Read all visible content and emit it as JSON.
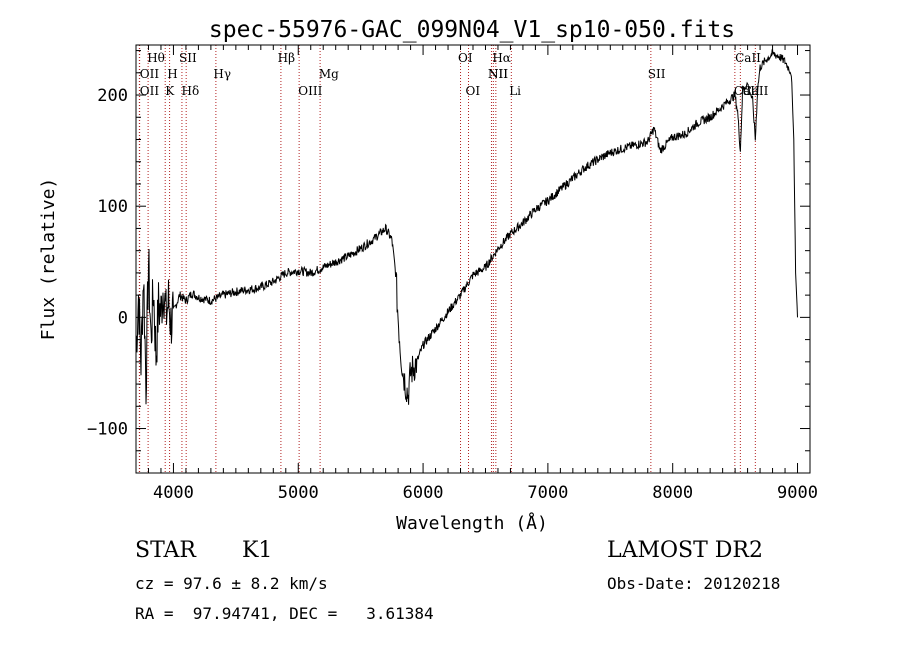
{
  "chart_data": {
    "type": "line",
    "title": "spec-55976-GAC_099N04_V1_sp10-050.fits",
    "xlabel": "Wavelength (Å)",
    "ylabel": "Flux (relative)",
    "xlim": [
      3700,
      9100
    ],
    "ylim": [
      -140,
      245
    ],
    "x_ticks": [
      4000,
      5000,
      6000,
      7000,
      8000,
      9000
    ],
    "x_tick_labels": [
      "4000",
      "5000",
      "6000",
      "7000",
      "8000",
      "9000"
    ],
    "y_ticks": [
      -100,
      0,
      100,
      200
    ],
    "y_tick_labels": [
      "−100",
      "0",
      "100",
      "200"
    ],
    "grid": false,
    "series": [
      {
        "x": [
          3700,
          3720,
          3740,
          3760,
          3780,
          3800,
          3820,
          3840,
          3860,
          3880,
          3900,
          3920,
          3940,
          3960,
          3980,
          4000,
          4050,
          4100,
          4150,
          4200,
          4300,
          4400,
          4500,
          4600,
          4700,
          4800,
          4900,
          5000,
          5100,
          5200,
          5300,
          5400,
          5500,
          5600,
          5650,
          5700,
          5750,
          5780,
          5800,
          5820,
          5840,
          5860,
          5880,
          5900,
          5950,
          6000,
          6100,
          6200,
          6300,
          6400,
          6500,
          6600,
          6700,
          6800,
          6900,
          7000,
          7100,
          7200,
          7300,
          7400,
          7500,
          7600,
          7700,
          7800,
          7850,
          7900,
          8000,
          8100,
          8200,
          8300,
          8400,
          8450,
          8498,
          8520,
          8542,
          8560,
          8600,
          8640,
          8662,
          8680,
          8700,
          8750,
          8800,
          8850,
          8900,
          8950,
          8970,
          8985,
          9000
        ],
        "y": [
          -30,
          20,
          -40,
          40,
          -60,
          50,
          -20,
          25,
          -35,
          10,
          5,
          30,
          0,
          15,
          -5,
          5,
          20,
          15,
          22,
          18,
          15,
          20,
          23,
          25,
          27,
          32,
          40,
          42,
          40,
          45,
          50,
          55,
          62,
          70,
          75,
          80,
          70,
          40,
          0,
          -30,
          -50,
          -60,
          -70,
          -50,
          -40,
          -25,
          -10,
          5,
          20,
          38,
          45,
          62,
          75,
          85,
          97,
          105,
          115,
          125,
          135,
          142,
          148,
          152,
          155,
          158,
          170,
          150,
          162,
          165,
          175,
          180,
          190,
          195,
          200,
          185,
          150,
          205,
          210,
          195,
          160,
          205,
          225,
          232,
          237,
          235,
          230,
          220,
          160,
          40,
          0
        ]
      }
    ],
    "line_markers": [
      {
        "wavelength": 3727,
        "label": "OII",
        "row": 2,
        "label_x": 3730
      },
      {
        "wavelength": 3729,
        "label": "OII",
        "row": 3,
        "label_x": 3730
      },
      {
        "wavelength": 3797,
        "label": "Hθ",
        "row": 1,
        "label_x": 3790
      },
      {
        "wavelength": 3934,
        "label": "K",
        "row": 3,
        "label_x": 3934
      },
      {
        "wavelength": 3969,
        "label": "H",
        "row": 2,
        "label_x": 3950
      },
      {
        "wavelength": 4068,
        "label": "SII",
        "row": 1,
        "label_x": 4045
      },
      {
        "wavelength": 4102,
        "label": "Hδ",
        "row": 3,
        "label_x": 4065
      },
      {
        "wavelength": 4340,
        "label": "Hγ",
        "row": 2,
        "label_x": 4320
      },
      {
        "wavelength": 4861,
        "label": "Hβ",
        "row": 1,
        "label_x": 4835
      },
      {
        "wavelength": 5007,
        "label": "OIII",
        "row": 3,
        "label_x": 5000
      },
      {
        "wavelength": 5175,
        "label": "Mg",
        "row": 2,
        "label_x": 5165
      },
      {
        "wavelength": 6300,
        "label": "OI",
        "row": 1,
        "label_x": 6280
      },
      {
        "wavelength": 6364,
        "label": "OI",
        "row": 3,
        "label_x": 6340
      },
      {
        "wavelength": 6548,
        "label": "NII",
        "row": 2,
        "label_x": 6520
      },
      {
        "wavelength": 6563,
        "label": "Hα",
        "row": 1,
        "label_x": 6555
      },
      {
        "wavelength": 6583,
        "label": "NII",
        "row": 2,
        "label_x": 6520
      },
      {
        "wavelength": 6707,
        "label": "Li",
        "row": 3,
        "label_x": 6690
      },
      {
        "wavelength": 7825,
        "label": "SII",
        "row": 2,
        "label_x": 7800
      },
      {
        "wavelength": 8498,
        "label": "CaII",
        "row": 1,
        "label_x": 8500
      },
      {
        "wavelength": 8542,
        "label": "CaII",
        "row": 3,
        "label_x": 8490
      },
      {
        "wavelength": 8662,
        "label": "CaII",
        "row": 3,
        "label_x": 8560
      }
    ]
  },
  "info": {
    "object_class": "STAR",
    "subclass": "K1",
    "survey": "LAMOST DR2",
    "cz": "cz = 97.6 ± 8.2 km/s",
    "obs_date": "Obs-Date: 20120218",
    "coords": "RA =  97.94741, DEC =   3.61384"
  }
}
